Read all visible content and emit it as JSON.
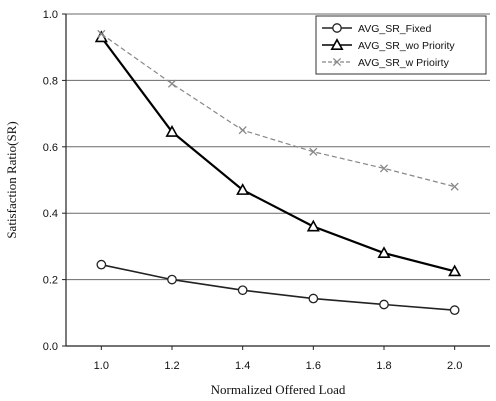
{
  "chart_data": {
    "type": "line",
    "title": "",
    "xlabel": "Normalized Offered Load",
    "ylabel": "Satisfaction Ratio(SR)",
    "x": [
      1.0,
      1.2,
      1.4,
      1.6,
      1.8,
      2.0
    ],
    "xtick_labels": [
      "1.0",
      "1.2",
      "1.4",
      "1.6",
      "1.8",
      "2.0"
    ],
    "xlim": [
      0.9,
      2.1
    ],
    "ylim": [
      0.0,
      1.0
    ],
    "yticks": [
      0.0,
      0.2,
      0.4,
      0.6,
      0.8,
      1.0
    ],
    "ytick_labels": [
      "0.0",
      "0.2",
      "0.4",
      "0.6",
      "0.8",
      "1.0"
    ],
    "grid": "horizontal",
    "legend_position": "top-right",
    "series": [
      {
        "name": "AVG_SR_Fixed",
        "values": [
          0.245,
          0.2,
          0.168,
          0.143,
          0.125,
          0.108
        ],
        "color": "#222222",
        "marker": "circle",
        "line_style": "solid"
      },
      {
        "name": "AVG_SR_wo Priority",
        "values": [
          0.93,
          0.645,
          0.47,
          0.36,
          0.28,
          0.225
        ],
        "color": "#000000",
        "marker": "triangle",
        "line_style": "solid"
      },
      {
        "name": "AVG_SR_w Prioirty",
        "values": [
          0.94,
          0.79,
          0.65,
          0.585,
          0.535,
          0.48
        ],
        "color": "#888888",
        "marker": "x",
        "line_style": "dashed"
      }
    ]
  }
}
